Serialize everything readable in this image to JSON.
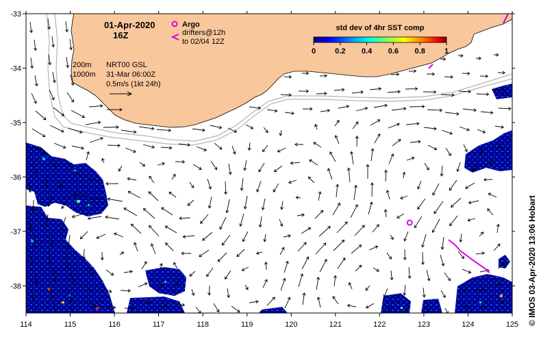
{
  "title": {
    "date": "01-Apr-2020",
    "time": "16Z"
  },
  "legend": {
    "argo_label": "Argo",
    "drifters_line1": "drifters@12h",
    "drifters_line2": "to 02/04 12Z",
    "argo_color": "#e000e0"
  },
  "contours": {
    "label_200m": "200m",
    "label_1000m": "1000m"
  },
  "info": {
    "line1": "NRT00 GSL",
    "line2": "31-Mar 06:00Z",
    "line3": "0.5m/s (1kt 24h)"
  },
  "colorbar": {
    "title": "std dev of 4hr SST comp",
    "ticks": [
      "0",
      "0.2",
      "0.4",
      "0.6",
      "0.8",
      "1"
    ],
    "range": [
      0,
      1
    ]
  },
  "axes": {
    "x_ticks": [
      "114",
      "115",
      "116",
      "117",
      "118",
      "119",
      "120",
      "121",
      "122",
      "123",
      "124",
      "125"
    ],
    "y_ticks": [
      "-33",
      "-34",
      "-35",
      "-36",
      "-37",
      "-38"
    ],
    "lon_range": [
      114,
      125
    ],
    "lat_range": [
      -38.5,
      -33
    ]
  },
  "credit": "© IMOS 03-Apr-2020 13:06 Hobart",
  "colors": {
    "land": "#f9c79c",
    "contour": "#b4b4b4",
    "sst_low": "#00008b",
    "argo": "#e000e0"
  },
  "argo_floats": [
    {
      "lon": 122.68,
      "lat": -36.84
    }
  ]
}
